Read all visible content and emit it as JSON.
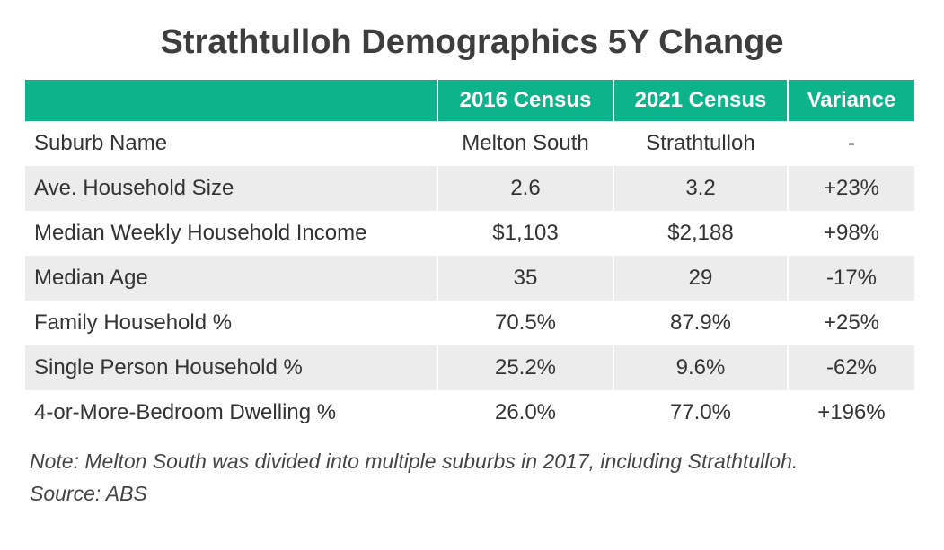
{
  "chart_data": {
    "type": "table",
    "title": "Strathtulloh Demographics 5Y Change",
    "columns": [
      "",
      "2016 Census",
      "2021 Census",
      "Variance"
    ],
    "rows": [
      [
        "Suburb Name",
        "Melton South",
        "Strathtulloh",
        "-"
      ],
      [
        "Ave. Household Size",
        "2.6",
        "3.2",
        "+23%"
      ],
      [
        "Median Weekly Household Income",
        "$1,103",
        "$2,188",
        "+98%"
      ],
      [
        "Median Age",
        "35",
        "29",
        "-17%"
      ],
      [
        "Family Household %",
        "70.5%",
        "87.9%",
        "+25%"
      ],
      [
        "Single Person Household %",
        "25.2%",
        "9.6%",
        "-62%"
      ],
      [
        "4-or-More-Bedroom Dwelling %",
        "26.0%",
        "77.0%",
        "+196%"
      ]
    ],
    "notes": [
      "Note: Melton South was divided into multiple suburbs in 2017, including Strathtulloh.",
      "Source: ABS"
    ]
  },
  "colors": {
    "header_bg": "#0db38b",
    "header_text": "#ffffff",
    "stripe": "#ececec",
    "text": "#333333"
  }
}
